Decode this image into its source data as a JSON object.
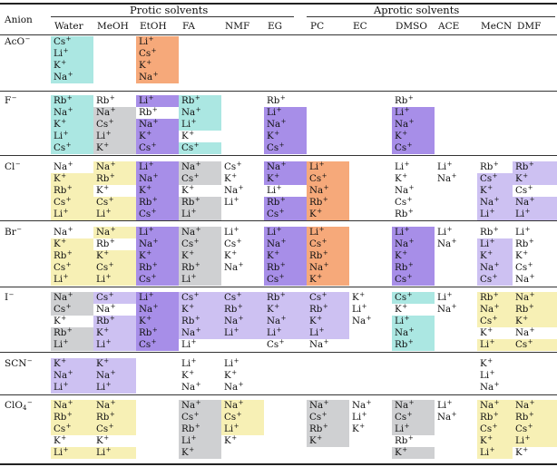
{
  "table": {
    "corner_label": "Anion",
    "group_protic": "Protic solvents",
    "group_aprotic": "Aprotic solvents",
    "columns": [
      "Water",
      "MeOH",
      "EtOH",
      "FA",
      "NMF",
      "EG",
      "PC",
      "EC",
      "DMSO",
      "ACE",
      "MeCN",
      "DMF"
    ],
    "colors": {
      "c": "#abe7e2",
      "o": "#f6a97a",
      "p": "#a78ee8",
      "l": "#cdc1f2",
      "g": "#cfd0d2",
      "y": "#f7f0b5",
      "w": "#ffffff"
    },
    "anions": [
      {
        "label": "AcO",
        "sup": "−",
        "cols": {
          "Water": [
            [
              "Cs",
              "c"
            ],
            [
              "Li",
              "c"
            ],
            [
              "K",
              "c"
            ],
            [
              "Na",
              "c"
            ]
          ],
          "EtOH": [
            [
              "Li",
              "o"
            ],
            [
              "Cs",
              "o"
            ],
            [
              "K",
              "o"
            ],
            [
              "Na",
              "o"
            ]
          ]
        }
      },
      {
        "label": "F",
        "sup": "−",
        "cols": {
          "Water": [
            [
              "Rb",
              "c"
            ],
            [
              "Na",
              "c"
            ],
            [
              "K",
              "c"
            ],
            [
              "Li",
              "c"
            ],
            [
              "Cs",
              "c"
            ]
          ],
          "MeOH": [
            [
              "Rb",
              "w"
            ],
            [
              "Na",
              "g"
            ],
            [
              "Cs",
              "g"
            ],
            [
              "Li",
              "g"
            ],
            [
              "K",
              "g"
            ]
          ],
          "EtOH": [
            [
              "Li",
              "p"
            ],
            [
              "Rb",
              "w"
            ],
            [
              "Na",
              "p"
            ],
            [
              "K",
              "p"
            ],
            [
              "Cs",
              "p"
            ]
          ],
          "FA": [
            [
              "Rb",
              "c"
            ],
            [
              "Na",
              "c"
            ],
            [
              "Li",
              "c"
            ],
            [
              "K",
              "w"
            ],
            [
              "Cs",
              "c"
            ]
          ],
          "EG": [
            [
              "Rb",
              "w"
            ],
            [
              "Li",
              "p"
            ],
            [
              "Na",
              "p"
            ],
            [
              "K",
              "p"
            ],
            [
              "Cs",
              "p"
            ]
          ],
          "DMSO": [
            [
              "Rb",
              "w"
            ],
            [
              "Li",
              "p"
            ],
            [
              "Na",
              "p"
            ],
            [
              "K",
              "p"
            ],
            [
              "Cs",
              "p"
            ]
          ]
        }
      },
      {
        "label": "Cl",
        "sup": "−",
        "cols": {
          "Water": [
            [
              "Na",
              "w"
            ],
            [
              "K",
              "y"
            ],
            [
              "Rb",
              "y"
            ],
            [
              "Cs",
              "y"
            ],
            [
              "Li",
              "y"
            ]
          ],
          "MeOH": [
            [
              "Na",
              "y"
            ],
            [
              "Rb",
              "y"
            ],
            [
              "K",
              "w"
            ],
            [
              "Cs",
              "y"
            ],
            [
              "Li",
              "y"
            ]
          ],
          "EtOH": [
            [
              "Li",
              "p"
            ],
            [
              "Na",
              "p"
            ],
            [
              "K",
              "p"
            ],
            [
              "Rb",
              "p"
            ],
            [
              "Cs",
              "p"
            ]
          ],
          "FA": [
            [
              "Na",
              "g"
            ],
            [
              "Cs",
              "g"
            ],
            [
              "K",
              "w"
            ],
            [
              "Rb",
              "g"
            ],
            [
              "Li",
              "g"
            ]
          ],
          "NMF": [
            [
              "Cs",
              "w"
            ],
            [
              "K",
              "w"
            ],
            [
              "Na",
              "w"
            ],
            [
              "Li",
              "w"
            ]
          ],
          "EG": [
            [
              "Na",
              "p"
            ],
            [
              "K",
              "p"
            ],
            [
              "Li",
              "w"
            ],
            [
              "Rb",
              "p"
            ],
            [
              "Cs",
              "p"
            ]
          ],
          "PC": [
            [
              "Li",
              "o"
            ],
            [
              "Cs",
              "o"
            ],
            [
              "Na",
              "o"
            ],
            [
              "Rb",
              "o"
            ],
            [
              "K",
              "o"
            ]
          ],
          "DMSO": [
            [
              "Li",
              "w"
            ],
            [
              "K",
              "w"
            ],
            [
              "Na",
              "w"
            ],
            [
              "Cs",
              "w"
            ],
            [
              "Rb",
              "w"
            ]
          ],
          "ACE": [
            [
              "Li",
              "w"
            ],
            [
              "Na",
              "w"
            ]
          ],
          "MeCN": [
            [
              "Rb",
              "w"
            ],
            [
              "Cs",
              "l"
            ],
            [
              "K",
              "l"
            ],
            [
              "Na",
              "l"
            ],
            [
              "Li",
              "l"
            ]
          ],
          "DMF": [
            [
              "Rb",
              "l"
            ],
            [
              "K",
              "l"
            ],
            [
              "Cs",
              "w"
            ],
            [
              "Na",
              "l"
            ],
            [
              "Li",
              "l"
            ]
          ]
        }
      },
      {
        "label": "Br",
        "sup": "−",
        "cols": {
          "Water": [
            [
              "Na",
              "w"
            ],
            [
              "K",
              "y"
            ],
            [
              "Rb",
              "y"
            ],
            [
              "Cs",
              "y"
            ],
            [
              "Li",
              "y"
            ]
          ],
          "MeOH": [
            [
              "Na",
              "y"
            ],
            [
              "Rb",
              "w"
            ],
            [
              "K",
              "y"
            ],
            [
              "Cs",
              "y"
            ],
            [
              "Li",
              "y"
            ]
          ],
          "EtOH": [
            [
              "Li",
              "p"
            ],
            [
              "Na",
              "p"
            ],
            [
              "K",
              "p"
            ],
            [
              "Rb",
              "p"
            ],
            [
              "Cs",
              "p"
            ]
          ],
          "FA": [
            [
              "Na",
              "g"
            ],
            [
              "Cs",
              "g"
            ],
            [
              "K",
              "g"
            ],
            [
              "Rb",
              "g"
            ],
            [
              "Li",
              "g"
            ]
          ],
          "NMF": [
            [
              "Li",
              "w"
            ],
            [
              "Cs",
              "w"
            ],
            [
              "K",
              "w"
            ],
            [
              "Na",
              "w"
            ]
          ],
          "EG": [
            [
              "Li",
              "p"
            ],
            [
              "Na",
              "p"
            ],
            [
              "K",
              "p"
            ],
            [
              "Rb",
              "p"
            ],
            [
              "Cs",
              "p"
            ]
          ],
          "PC": [
            [
              "Li",
              "o"
            ],
            [
              "Cs",
              "o"
            ],
            [
              "Rb",
              "o"
            ],
            [
              "Na",
              "o"
            ],
            [
              "K",
              "o"
            ]
          ],
          "DMSO": [
            [
              "Li",
              "p"
            ],
            [
              "Na",
              "p"
            ],
            [
              "K",
              "p"
            ],
            [
              "Rb",
              "p"
            ],
            [
              "Cs",
              "p"
            ]
          ],
          "ACE": [
            [
              "Li",
              "w"
            ],
            [
              "Na",
              "w"
            ]
          ],
          "MeCN": [
            [
              "Rb",
              "w"
            ],
            [
              "Li",
              "l"
            ],
            [
              "K",
              "l"
            ],
            [
              "Na",
              "l"
            ],
            [
              "Cs",
              "l"
            ]
          ],
          "DMF": [
            [
              "Li",
              "w"
            ],
            [
              "Rb",
              "w"
            ],
            [
              "K",
              "w"
            ],
            [
              "Cs",
              "w"
            ],
            [
              "Na",
              "w"
            ]
          ]
        }
      },
      {
        "label": "I",
        "sup": "−",
        "cols": {
          "Water": [
            [
              "Na",
              "g"
            ],
            [
              "Cs",
              "g"
            ],
            [
              "K",
              "w"
            ],
            [
              "Rb",
              "g"
            ],
            [
              "Li",
              "g"
            ]
          ],
          "MeOH": [
            [
              "Cs",
              "l"
            ],
            [
              "Na",
              "w"
            ],
            [
              "Rb",
              "l"
            ],
            [
              "K",
              "l"
            ],
            [
              "Li",
              "l"
            ]
          ],
          "EtOH": [
            [
              "Li",
              "p"
            ],
            [
              "Na",
              "p"
            ],
            [
              "K",
              "p"
            ],
            [
              "Rb",
              "p"
            ],
            [
              "Cs",
              "p"
            ]
          ],
          "FA": [
            [
              "Cs",
              "l"
            ],
            [
              "K",
              "l"
            ],
            [
              "Rb",
              "l"
            ],
            [
              "Na",
              "l"
            ],
            [
              "Li",
              "w"
            ]
          ],
          "NMF": [
            [
              "Cs",
              "l"
            ],
            [
              "Rb",
              "l"
            ],
            [
              "Na",
              "l"
            ],
            [
              "Li",
              "l"
            ]
          ],
          "EG": [
            [
              "Rb",
              "l"
            ],
            [
              "K",
              "l"
            ],
            [
              "Na",
              "l"
            ],
            [
              "Li",
              "l"
            ],
            [
              "Cs",
              "w"
            ]
          ],
          "PC": [
            [
              "Cs",
              "l"
            ],
            [
              "Rb",
              "l"
            ],
            [
              "K",
              "l"
            ],
            [
              "Li",
              "l"
            ],
            [
              "Na",
              "w"
            ]
          ],
          "EC": [
            [
              "K",
              "w"
            ],
            [
              "Li",
              "w"
            ],
            [
              "Na",
              "w"
            ]
          ],
          "DMSO": [
            [
              "Cs",
              "c"
            ],
            [
              "K",
              "w"
            ],
            [
              "Li",
              "c"
            ],
            [
              "Na",
              "c"
            ],
            [
              "Rb",
              "c"
            ]
          ],
          "ACE": [
            [
              "Li",
              "w"
            ],
            [
              "Na",
              "w"
            ]
          ],
          "MeCN": [
            [
              "Rb",
              "y"
            ],
            [
              "Na",
              "y"
            ],
            [
              "Cs",
              "y"
            ],
            [
              "K",
              "w"
            ],
            [
              "Li",
              "y"
            ]
          ],
          "DMF": [
            [
              "Na",
              "y"
            ],
            [
              "Rb",
              "y"
            ],
            [
              "K",
              "y"
            ],
            [
              "Na",
              "w"
            ],
            [
              "Cs",
              "y"
            ]
          ]
        }
      },
      {
        "label": "SCN",
        "sup": "−",
        "cols": {
          "Water": [
            [
              "K",
              "l"
            ],
            [
              "Na",
              "l"
            ],
            [
              "Li",
              "l"
            ]
          ],
          "MeOH": [
            [
              "K",
              "l"
            ],
            [
              "Na",
              "l"
            ],
            [
              "Li",
              "l"
            ]
          ],
          "FA": [
            [
              "Li",
              "w"
            ],
            [
              "K",
              "w"
            ],
            [
              "Na",
              "w"
            ]
          ],
          "NMF": [
            [
              "Li",
              "w"
            ],
            [
              "K",
              "w"
            ],
            [
              "Na",
              "w"
            ]
          ],
          "MeCN": [
            [
              "K",
              "w"
            ],
            [
              "Li",
              "w"
            ],
            [
              "Na",
              "w"
            ]
          ]
        }
      },
      {
        "label": "ClO",
        "sub": "4",
        "sup": "−",
        "cols": {
          "Water": [
            [
              "Na",
              "y"
            ],
            [
              "Rb",
              "y"
            ],
            [
              "Cs",
              "y"
            ],
            [
              "K",
              "w"
            ],
            [
              "Li",
              "y"
            ]
          ],
          "MeOH": [
            [
              "Na",
              "y"
            ],
            [
              "Rb",
              "y"
            ],
            [
              "Cs",
              "y"
            ],
            [
              "K",
              "w"
            ],
            [
              "Li",
              "y"
            ]
          ],
          "FA": [
            [
              "Na",
              "g"
            ],
            [
              "Cs",
              "g"
            ],
            [
              "Rb",
              "g"
            ],
            [
              "Li",
              "g"
            ],
            [
              "K",
              "g"
            ]
          ],
          "NMF": [
            [
              "Na",
              "y"
            ],
            [
              "Cs",
              "y"
            ],
            [
              "Li",
              "y"
            ],
            [
              "K",
              "w"
            ]
          ],
          "PC": [
            [
              "Na",
              "g"
            ],
            [
              "Cs",
              "g"
            ],
            [
              "Rb",
              "g"
            ],
            [
              "K",
              "g"
            ]
          ],
          "EC": [
            [
              "Na",
              "w"
            ],
            [
              "Li",
              "w"
            ],
            [
              "K",
              "w"
            ]
          ],
          "DMSO": [
            [
              "Na",
              "g"
            ],
            [
              "Cs",
              "g"
            ],
            [
              "Li",
              "g"
            ],
            [
              "Rb",
              "w"
            ],
            [
              "K",
              "g"
            ]
          ],
          "ACE": [
            [
              "Li",
              "w"
            ],
            [
              "Na",
              "w"
            ]
          ],
          "MeCN": [
            [
              "Na",
              "y"
            ],
            [
              "Rb",
              "y"
            ],
            [
              "Cs",
              "y"
            ],
            [
              "K",
              "y"
            ],
            [
              "Li",
              "y"
            ]
          ],
          "DMF": [
            [
              "Na",
              "y"
            ],
            [
              "Rb",
              "y"
            ],
            [
              "Cs",
              "y"
            ],
            [
              "Li",
              "y"
            ],
            [
              "K",
              "w"
            ]
          ]
        }
      }
    ]
  }
}
